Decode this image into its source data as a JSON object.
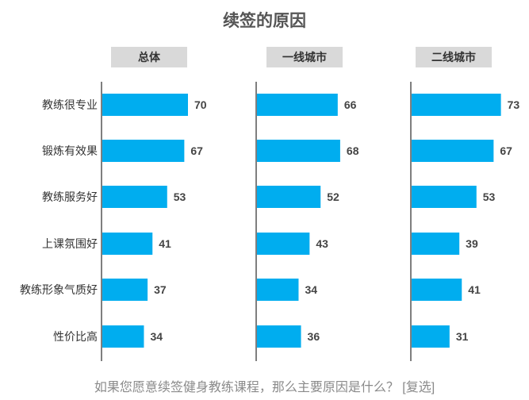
{
  "title": "续签的原因",
  "footnote": "如果您愿意续签健身教练课程，那么主要原因是什么？ [复选]",
  "colors": {
    "bar": "#00ADEF",
    "header_bg": "#D9D9D9",
    "axis": "#555555"
  },
  "chart_data": {
    "type": "bar",
    "orientation": "horizontal",
    "categories": [
      "教练很专业",
      "锻炼有效果",
      "教练服务好",
      "上课氛围好",
      "教练形象气质好",
      "性价比高"
    ],
    "series": [
      {
        "name": "总体",
        "values": [
          70,
          67,
          53,
          41,
          37,
          34
        ]
      },
      {
        "name": "一线城市",
        "values": [
          66,
          68,
          52,
          43,
          34,
          36
        ]
      },
      {
        "name": "二线城市",
        "values": [
          73,
          67,
          53,
          39,
          41,
          31
        ]
      }
    ],
    "xlim": [
      0,
      100
    ],
    "grid": false,
    "legend": "none"
  }
}
